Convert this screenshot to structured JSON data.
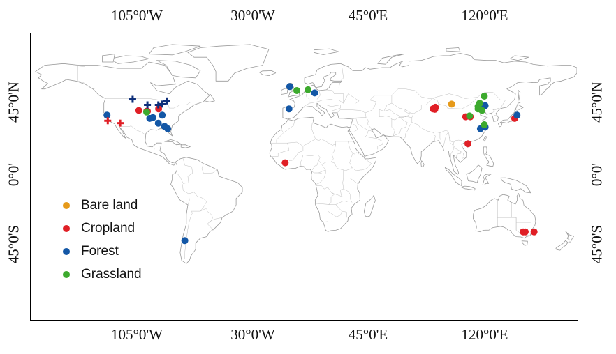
{
  "map": {
    "lon_range": [
      -171,
      180
    ],
    "lat_range": [
      -90,
      90
    ],
    "axis_labels": {
      "top": [
        "105°0'W",
        "30°0'W",
        "45°0'E",
        "120°0'E"
      ],
      "bottom": [
        "105°0'W",
        "30°0'W",
        "45°0'E",
        "120°0'E"
      ],
      "left": [
        "45°0'N",
        "0°0'",
        "45°0'S"
      ],
      "right": [
        "45°0'N",
        "0°0'",
        "45°0'S"
      ]
    },
    "tick_lon_values": [
      -105,
      -30,
      45,
      120
    ],
    "tick_lat_values": [
      45,
      0,
      -45
    ]
  },
  "legend": {
    "items": [
      {
        "label": "Bare land",
        "color": "#E69A1A"
      },
      {
        "label": "Cropland",
        "color": "#E01F26"
      },
      {
        "label": "Forest",
        "color": "#1357A6"
      },
      {
        "label": "Grassland",
        "color": "#3DAA2E"
      }
    ]
  },
  "sites": {
    "bare_land": [
      [
        99.5,
        45.5
      ]
    ],
    "cropland": [
      [
        -101.5,
        41.5
      ],
      [
        -96,
        41
      ],
      [
        -96.5,
        41
      ],
      [
        -88.8,
        42.5
      ],
      [
        -7.5,
        8.5
      ],
      [
        87.5,
        42.5
      ],
      [
        89,
        43.5
      ],
      [
        88.7,
        42.2
      ],
      [
        110,
        20.5
      ],
      [
        111.5,
        37.5
      ],
      [
        108.5,
        37.5
      ],
      [
        140,
        36.5
      ],
      [
        145.5,
        -35
      ],
      [
        146.8,
        -35
      ],
      [
        152.5,
        -35
      ]
    ],
    "forest": [
      [
        -122,
        38.5
      ],
      [
        -92.5,
        37
      ],
      [
        -89,
        33.5
      ],
      [
        -86.5,
        38.5
      ],
      [
        -83,
        30
      ],
      [
        -85,
        31.5
      ],
      [
        -94.5,
        36.5
      ],
      [
        -72,
        -40.5
      ],
      [
        -4.5,
        56.5
      ],
      [
        11.5,
        52.5
      ],
      [
        -5,
        42.5
      ],
      [
        118,
        43
      ],
      [
        121,
        44.5
      ],
      [
        118,
        30
      ],
      [
        121,
        31
      ],
      [
        141.5,
        38.5
      ]
    ],
    "grassland": [
      [
        -96.5,
        40.5
      ],
      [
        0,
        54
      ],
      [
        7.2,
        54.5
      ],
      [
        116.5,
        44
      ],
      [
        117.5,
        46
      ],
      [
        116.5,
        42.5
      ],
      [
        119,
        41.5
      ],
      [
        120.5,
        50.5
      ],
      [
        111,
        38
      ],
      [
        120.5,
        32.5
      ]
    ],
    "cropland_cross": [
      [
        -121.5,
        35
      ],
      [
        -113.5,
        33.5
      ]
    ],
    "forest_cross": [
      [
        -105.5,
        48.5
      ],
      [
        -96,
        45
      ],
      [
        -89,
        45
      ],
      [
        -83.5,
        47.5
      ],
      [
        -86.5,
        45.5
      ]
    ]
  }
}
